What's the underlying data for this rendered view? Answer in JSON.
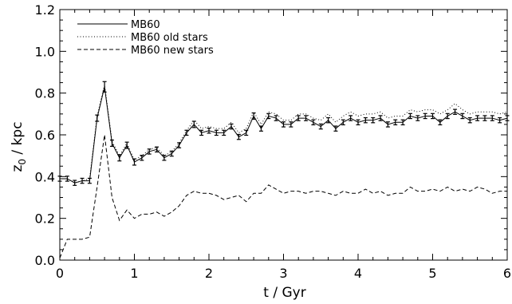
{
  "chart_data": {
    "type": "line",
    "xlabel": "t / Gyr",
    "ylabel_main": "z",
    "ylabel_sub": "0",
    "ylabel_rest": " / kpc",
    "xlim": [
      0,
      6
    ],
    "ylim": [
      0,
      1.2
    ],
    "xticks": [
      0,
      1,
      2,
      3,
      4,
      5,
      6
    ],
    "xtick_labels": [
      "0",
      "1",
      "2",
      "3",
      "4",
      "5",
      "6"
    ],
    "yticks": [
      0.0,
      0.2,
      0.4,
      0.6,
      0.8,
      1.0,
      1.2
    ],
    "ytick_labels": [
      "0.0",
      "0.2",
      "0.4",
      "0.6",
      "0.8",
      "1.0",
      "1.2"
    ],
    "grid": false,
    "legend_position": "top-left",
    "x": [
      0.0,
      0.1,
      0.2,
      0.3,
      0.4,
      0.5,
      0.6,
      0.7,
      0.8,
      0.9,
      1.0,
      1.1,
      1.2,
      1.3,
      1.4,
      1.5,
      1.6,
      1.7,
      1.8,
      1.9,
      2.0,
      2.1,
      2.2,
      2.3,
      2.4,
      2.5,
      2.6,
      2.7,
      2.8,
      2.9,
      3.0,
      3.1,
      3.2,
      3.3,
      3.4,
      3.5,
      3.6,
      3.7,
      3.8,
      3.9,
      4.0,
      4.1,
      4.2,
      4.3,
      4.4,
      4.5,
      4.6,
      4.7,
      4.8,
      4.9,
      5.0,
      5.1,
      5.2,
      5.3,
      5.4,
      5.5,
      5.6,
      5.7,
      5.8,
      5.9,
      6.0
    ],
    "series": [
      {
        "name": "MB60",
        "style": "solid",
        "color": "#000000",
        "error_bars": true,
        "values": [
          0.39,
          0.39,
          0.37,
          0.38,
          0.38,
          0.68,
          0.83,
          0.56,
          0.49,
          0.55,
          0.47,
          0.49,
          0.52,
          0.53,
          0.49,
          0.51,
          0.55,
          0.61,
          0.65,
          0.61,
          0.62,
          0.61,
          0.61,
          0.64,
          0.59,
          0.61,
          0.69,
          0.63,
          0.69,
          0.68,
          0.65,
          0.65,
          0.68,
          0.68,
          0.66,
          0.64,
          0.67,
          0.63,
          0.66,
          0.68,
          0.66,
          0.67,
          0.67,
          0.68,
          0.65,
          0.66,
          0.66,
          0.69,
          0.68,
          0.69,
          0.69,
          0.66,
          0.69,
          0.71,
          0.69,
          0.67,
          0.68,
          0.68,
          0.68,
          0.67,
          0.68
        ],
        "errors": [
          0.012,
          0.012,
          0.012,
          0.012,
          0.012,
          0.015,
          0.025,
          0.015,
          0.015,
          0.015,
          0.015,
          0.012,
          0.012,
          0.012,
          0.012,
          0.012,
          0.012,
          0.012,
          0.015,
          0.012,
          0.012,
          0.012,
          0.012,
          0.012,
          0.012,
          0.012,
          0.015,
          0.012,
          0.012,
          0.012,
          0.012,
          0.012,
          0.012,
          0.012,
          0.012,
          0.012,
          0.012,
          0.012,
          0.012,
          0.012,
          0.012,
          0.012,
          0.012,
          0.012,
          0.012,
          0.012,
          0.012,
          0.012,
          0.012,
          0.012,
          0.012,
          0.012,
          0.012,
          0.012,
          0.012,
          0.012,
          0.012,
          0.012,
          0.012,
          0.012,
          0.012
        ]
      },
      {
        "name": "MB60 old stars",
        "style": "dotted",
        "color": "#000000",
        "values": [
          0.39,
          0.39,
          0.37,
          0.38,
          0.39,
          0.69,
          0.84,
          0.57,
          0.5,
          0.56,
          0.48,
          0.5,
          0.53,
          0.54,
          0.5,
          0.52,
          0.56,
          0.62,
          0.67,
          0.63,
          0.64,
          0.63,
          0.63,
          0.66,
          0.61,
          0.63,
          0.71,
          0.65,
          0.71,
          0.7,
          0.67,
          0.67,
          0.7,
          0.7,
          0.68,
          0.67,
          0.7,
          0.66,
          0.69,
          0.71,
          0.69,
          0.7,
          0.7,
          0.71,
          0.68,
          0.69,
          0.69,
          0.72,
          0.71,
          0.72,
          0.72,
          0.7,
          0.72,
          0.75,
          0.72,
          0.7,
          0.71,
          0.71,
          0.71,
          0.7,
          0.71
        ]
      },
      {
        "name": "MB60 new stars",
        "style": "dashed",
        "color": "#000000",
        "values": [
          0.01,
          0.1,
          0.1,
          0.1,
          0.11,
          0.35,
          0.6,
          0.3,
          0.19,
          0.24,
          0.2,
          0.22,
          0.22,
          0.23,
          0.21,
          0.23,
          0.26,
          0.31,
          0.33,
          0.32,
          0.32,
          0.31,
          0.29,
          0.3,
          0.31,
          0.28,
          0.32,
          0.32,
          0.36,
          0.34,
          0.32,
          0.33,
          0.33,
          0.32,
          0.33,
          0.33,
          0.32,
          0.31,
          0.33,
          0.32,
          0.32,
          0.34,
          0.32,
          0.33,
          0.31,
          0.32,
          0.32,
          0.35,
          0.33,
          0.33,
          0.34,
          0.33,
          0.35,
          0.33,
          0.34,
          0.33,
          0.35,
          0.34,
          0.32,
          0.33,
          0.33
        ]
      }
    ]
  }
}
